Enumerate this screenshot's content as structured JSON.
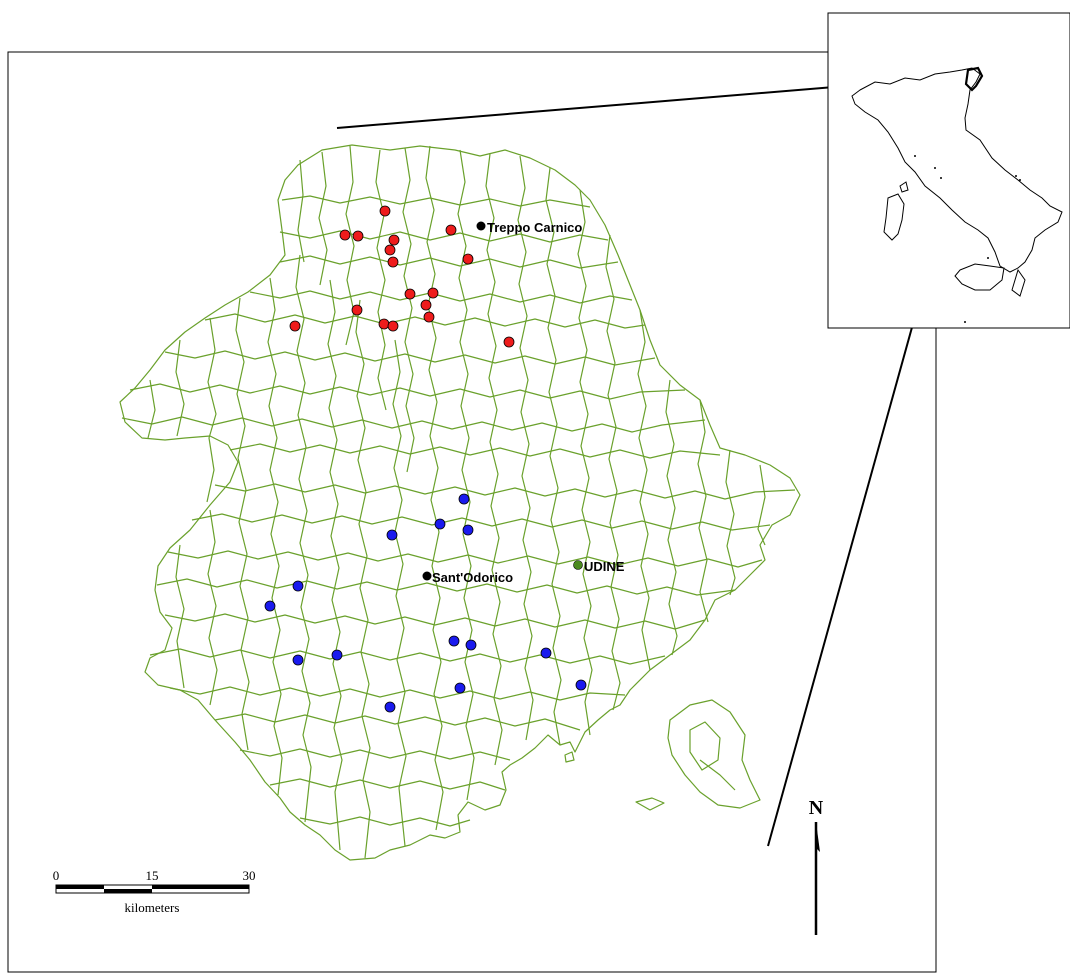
{
  "places": [
    {
      "name": "Treppo Carnico",
      "color": "#000000"
    },
    {
      "name": "Sant'Odorico",
      "color": "#000000"
    },
    {
      "name": "UDINE",
      "color": "#4a8a1e"
    }
  ],
  "sites": {
    "north_color": "#ee1c1c",
    "south_color": "#1a1aee"
  },
  "scale_bar": {
    "ticks": [
      "0",
      "15",
      "30"
    ],
    "unit": "kilometers"
  },
  "north_arrow": {
    "label": "N"
  },
  "colors": {
    "boundaries": "#6aa12c",
    "frame": "#000000"
  },
  "icons": {
    "inset": "italy-outline-icon",
    "north": "north-arrow-icon"
  }
}
